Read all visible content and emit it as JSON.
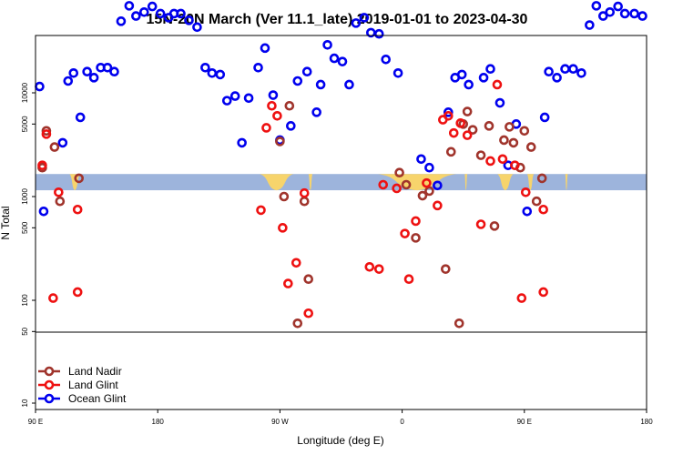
{
  "chart_data": {
    "type": "scatter",
    "title": "15N-20N March (Ver 11.1_late)   2019-01-01 to 2023-04-30",
    "xlabel": "Longitude (deg E)",
    "ylabel": "N Total",
    "y_scale": "log",
    "xlim": [
      0,
      450
    ],
    "ylim": [
      7,
      200000
    ],
    "y_break_value": 50,
    "x_ticks": [
      {
        "value": 0,
        "label": "90 E"
      },
      {
        "value": 90,
        "label": "180"
      },
      {
        "value": 180,
        "label": "90 W"
      },
      {
        "value": 270,
        "label": "0"
      },
      {
        "value": 360,
        "label": "90 E"
      },
      {
        "value": 450,
        "label": "180"
      }
    ],
    "y_ticks": [
      {
        "value": 10,
        "label": "10"
      },
      {
        "value": 50,
        "label": "50"
      },
      {
        "value": 100,
        "label": "100"
      },
      {
        "value": 500,
        "label": "500"
      },
      {
        "value": 1000,
        "label": "1000"
      },
      {
        "value": 5000,
        "label": "5000"
      },
      {
        "value": 10000,
        "label": "10000"
      }
    ],
    "legend_position": "bottom-left",
    "series": [
      {
        "name": "Land Nadir",
        "color": "#a0342c",
        "points": [
          [
            5,
            1900
          ],
          [
            8,
            4300
          ],
          [
            14,
            3000
          ],
          [
            18,
            900
          ],
          [
            32,
            1500
          ],
          [
            180,
            3400
          ],
          [
            183,
            1000
          ],
          [
            187,
            7500
          ],
          [
            193,
            60
          ],
          [
            198,
            900
          ],
          [
            201,
            160
          ],
          [
            268,
            1700
          ],
          [
            273,
            1300
          ],
          [
            280,
            400
          ],
          [
            285,
            1020
          ],
          [
            290,
            1130
          ],
          [
            302,
            200
          ],
          [
            306,
            2700
          ],
          [
            312,
            60
          ],
          [
            315,
            5000
          ],
          [
            318,
            6600
          ],
          [
            322,
            4400
          ],
          [
            328,
            2500
          ],
          [
            334,
            4800
          ],
          [
            338,
            520
          ],
          [
            345,
            3500
          ],
          [
            349,
            4700
          ],
          [
            352,
            3300
          ],
          [
            357,
            1900
          ],
          [
            360,
            4300
          ],
          [
            365,
            3000
          ],
          [
            369,
            900
          ],
          [
            373,
            1500
          ]
        ]
      },
      {
        "name": "Land Glint",
        "color": "#ee1111",
        "points": [
          [
            5,
            2000
          ],
          [
            8,
            4000
          ],
          [
            13,
            105
          ],
          [
            17,
            1100
          ],
          [
            31,
            750
          ],
          [
            31,
            120
          ],
          [
            166,
            740
          ],
          [
            170,
            4600
          ],
          [
            174,
            7500
          ],
          [
            178,
            6000
          ],
          [
            182,
            500
          ],
          [
            186,
            145
          ],
          [
            192,
            230
          ],
          [
            198,
            1080
          ],
          [
            201,
            75
          ],
          [
            246,
            210
          ],
          [
            253,
            200
          ],
          [
            256,
            1300
          ],
          [
            266,
            1200
          ],
          [
            272,
            440
          ],
          [
            275,
            160
          ],
          [
            280,
            580
          ],
          [
            288,
            1350
          ],
          [
            296,
            820
          ],
          [
            300,
            5500
          ],
          [
            304,
            6000
          ],
          [
            308,
            4100
          ],
          [
            313,
            5100
          ],
          [
            318,
            3900
          ],
          [
            328,
            540
          ],
          [
            335,
            2200
          ],
          [
            340,
            12000
          ],
          [
            344,
            2300
          ],
          [
            353,
            2000
          ],
          [
            358,
            105
          ],
          [
            361,
            1100
          ],
          [
            374,
            750
          ],
          [
            374,
            120
          ]
        ]
      },
      {
        "name": "Ocean Glint",
        "color": "#0000ee",
        "points": [
          [
            3,
            11500
          ],
          [
            6,
            720
          ],
          [
            20,
            3300
          ],
          [
            24,
            13000
          ],
          [
            28,
            15500
          ],
          [
            33,
            5800
          ],
          [
            38,
            16000
          ],
          [
            43,
            14000
          ],
          [
            48,
            17500
          ],
          [
            53,
            17500
          ],
          [
            58,
            16000
          ],
          [
            63,
            49000
          ],
          [
            69,
            69000
          ],
          [
            74,
            55000
          ],
          [
            80,
            60000
          ],
          [
            86,
            68000
          ],
          [
            92,
            58000
          ],
          [
            98,
            53000
          ],
          [
            102,
            58000
          ],
          [
            107,
            58000
          ],
          [
            113,
            50000
          ],
          [
            119,
            43000
          ],
          [
            125,
            17500
          ],
          [
            130,
            15500
          ],
          [
            136,
            15000
          ],
          [
            141,
            8400
          ],
          [
            147,
            9300
          ],
          [
            152,
            3300
          ],
          [
            157,
            8900
          ],
          [
            164,
            17500
          ],
          [
            169,
            27000
          ],
          [
            175,
            9500
          ],
          [
            180,
            3500
          ],
          [
            188,
            4800
          ],
          [
            193,
            13000
          ],
          [
            200,
            16000
          ],
          [
            207,
            6500
          ],
          [
            210,
            12000
          ],
          [
            215,
            29000
          ],
          [
            220,
            21500
          ],
          [
            226,
            20000
          ],
          [
            231,
            12000
          ],
          [
            236,
            47000
          ],
          [
            242,
            53000
          ],
          [
            247,
            38000
          ],
          [
            253,
            37000
          ],
          [
            258,
            21000
          ],
          [
            267,
            15500
          ],
          [
            284,
            2300
          ],
          [
            290,
            1900
          ],
          [
            296,
            1280
          ],
          [
            304,
            6500
          ],
          [
            309,
            14000
          ],
          [
            314,
            15000
          ],
          [
            319,
            12000
          ],
          [
            330,
            14000
          ],
          [
            335,
            17000
          ],
          [
            342,
            8000
          ],
          [
            348,
            2000
          ],
          [
            354,
            5000
          ],
          [
            362,
            720
          ],
          [
            375,
            5800
          ],
          [
            378,
            16000
          ],
          [
            384,
            14000
          ],
          [
            390,
            17000
          ],
          [
            396,
            17000
          ],
          [
            402,
            15500
          ],
          [
            408,
            45000
          ],
          [
            413,
            69000
          ],
          [
            418,
            55000
          ],
          [
            423,
            60000
          ],
          [
            429,
            68000
          ],
          [
            434,
            58000
          ],
          [
            441,
            58000
          ],
          [
            447,
            55000
          ]
        ]
      }
    ]
  },
  "colors": {
    "band": "#9db4dc",
    "land": "#f7d46c"
  }
}
